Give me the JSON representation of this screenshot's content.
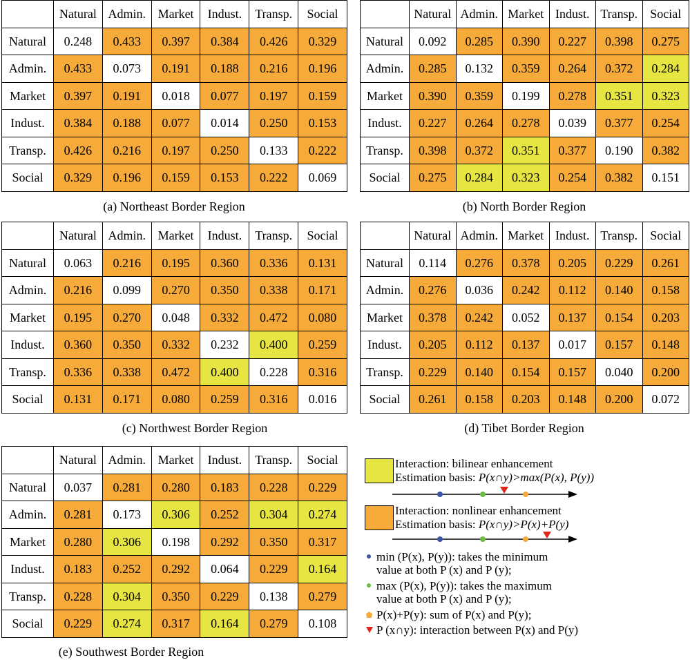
{
  "headers": [
    "Natural",
    "Admin.",
    "Market",
    "Indust.",
    "Transp.",
    "Social"
  ],
  "colors": {
    "white": "#ffffff",
    "orange": "#f5aa3a",
    "yellow": "#e7e541",
    "blue": "#3b56a6",
    "green": "#6dbb45",
    "red": "#e2241c"
  },
  "chart_data": [
    {
      "type": "table",
      "title": "(a) Northeast Border Region",
      "rows": [
        "Natural",
        "Admin.",
        "Market",
        "Indust.",
        "Transp.",
        "Social"
      ],
      "columns": [
        "Natural",
        "Admin.",
        "Market",
        "Indust.",
        "Transp.",
        "Social"
      ],
      "values": [
        [
          "0.248",
          "0.433",
          "0.397",
          "0.384",
          "0.426",
          "0.329"
        ],
        [
          "0.433",
          "0.073",
          "0.191",
          "0.188",
          "0.216",
          "0.196"
        ],
        [
          "0.397",
          "0.191",
          "0.018",
          "0.077",
          "0.197",
          "0.159"
        ],
        [
          "0.384",
          "0.188",
          "0.077",
          "0.014",
          "0.250",
          "0.153"
        ],
        [
          "0.426",
          "0.216",
          "0.197",
          "0.250",
          "0.133",
          "0.222"
        ],
        [
          "0.329",
          "0.196",
          "0.159",
          "0.153",
          "0.222",
          "0.069"
        ]
      ],
      "interaction": [
        [
          "w",
          "o",
          "o",
          "o",
          "o",
          "o"
        ],
        [
          "o",
          "w",
          "o",
          "o",
          "o",
          "o"
        ],
        [
          "o",
          "o",
          "w",
          "o",
          "o",
          "o"
        ],
        [
          "o",
          "o",
          "o",
          "w",
          "o",
          "o"
        ],
        [
          "o",
          "o",
          "o",
          "o",
          "w",
          "o"
        ],
        [
          "o",
          "o",
          "o",
          "o",
          "o",
          "w"
        ]
      ]
    },
    {
      "type": "table",
      "title": "(b) North Border Region",
      "rows": [
        "Natural",
        "Admin.",
        "Market",
        "Indust.",
        "Transp.",
        "Social"
      ],
      "columns": [
        "Natural",
        "Admin.",
        "Market",
        "Indust.",
        "Transp.",
        "Social"
      ],
      "values": [
        [
          "0.092",
          "0.285",
          "0.390",
          "0.227",
          "0.398",
          "0.275"
        ],
        [
          "0.285",
          "0.132",
          "0.359",
          "0.264",
          "0.372",
          "0.284"
        ],
        [
          "0.390",
          "0.359",
          "0.199",
          "0.278",
          "0.351",
          "0.323"
        ],
        [
          "0.227",
          "0.264",
          "0.278",
          "0.039",
          "0.377",
          "0.254"
        ],
        [
          "0.398",
          "0.372",
          "0.351",
          "0.377",
          "0.190",
          "0.382"
        ],
        [
          "0.275",
          "0.284",
          "0.323",
          "0.254",
          "0.382",
          "0.151"
        ]
      ],
      "interaction": [
        [
          "w",
          "o",
          "o",
          "o",
          "o",
          "o"
        ],
        [
          "o",
          "w",
          "o",
          "o",
          "o",
          "y"
        ],
        [
          "o",
          "o",
          "w",
          "o",
          "y",
          "y"
        ],
        [
          "o",
          "o",
          "o",
          "w",
          "o",
          "o"
        ],
        [
          "o",
          "o",
          "y",
          "o",
          "w",
          "o"
        ],
        [
          "o",
          "y",
          "y",
          "o",
          "o",
          "w"
        ]
      ]
    },
    {
      "type": "table",
      "title": "(c) Northwest Border Region",
      "rows": [
        "Natural",
        "Admin.",
        "Market",
        "Indust.",
        "Transp.",
        "Social"
      ],
      "columns": [
        "Natural",
        "Admin.",
        "Market",
        "Indust.",
        "Transp.",
        "Social"
      ],
      "values": [
        [
          "0.063",
          "0.216",
          "0.195",
          "0.360",
          "0.336",
          "0.131"
        ],
        [
          "0.216",
          "0.099",
          "0.270",
          "0.350",
          "0.338",
          "0.171"
        ],
        [
          "0.195",
          "0.270",
          "0.048",
          "0.332",
          "0.472",
          "0.080"
        ],
        [
          "0.360",
          "0.350",
          "0.332",
          "0.232",
          "0.400",
          "0.259"
        ],
        [
          "0.336",
          "0.338",
          "0.472",
          "0.400",
          "0.228",
          "0.316"
        ],
        [
          "0.131",
          "0.171",
          "0.080",
          "0.259",
          "0.316",
          "0.016"
        ]
      ],
      "interaction": [
        [
          "w",
          "o",
          "o",
          "o",
          "o",
          "o"
        ],
        [
          "o",
          "w",
          "o",
          "o",
          "o",
          "o"
        ],
        [
          "o",
          "o",
          "w",
          "o",
          "o",
          "o"
        ],
        [
          "o",
          "o",
          "o",
          "w",
          "y",
          "o"
        ],
        [
          "o",
          "o",
          "o",
          "y",
          "w",
          "o"
        ],
        [
          "o",
          "o",
          "o",
          "o",
          "o",
          "w"
        ]
      ]
    },
    {
      "type": "table",
      "title": "(d) Tibet Border Region",
      "rows": [
        "Natural",
        "Admin.",
        "Market",
        "Indust.",
        "Transp.",
        "Social"
      ],
      "columns": [
        "Natural",
        "Admin.",
        "Market",
        "Indust.",
        "Transp.",
        "Social"
      ],
      "values": [
        [
          "0.114",
          "0.276",
          "0.378",
          "0.205",
          "0.229",
          "0.261"
        ],
        [
          "0.276",
          "0.036",
          "0.242",
          "0.112",
          "0.140",
          "0.158"
        ],
        [
          "0.378",
          "0.242",
          "0.052",
          "0.137",
          "0.154",
          "0.203"
        ],
        [
          "0.205",
          "0.112",
          "0.137",
          "0.017",
          "0.157",
          "0.148"
        ],
        [
          "0.229",
          "0.140",
          "0.154",
          "0.157",
          "0.040",
          "0.200"
        ],
        [
          "0.261",
          "0.158",
          "0.203",
          "0.148",
          "0.200",
          "0.072"
        ]
      ],
      "interaction": [
        [
          "w",
          "o",
          "o",
          "o",
          "o",
          "o"
        ],
        [
          "o",
          "w",
          "o",
          "o",
          "o",
          "o"
        ],
        [
          "o",
          "o",
          "w",
          "o",
          "o",
          "o"
        ],
        [
          "o",
          "o",
          "o",
          "w",
          "o",
          "o"
        ],
        [
          "o",
          "o",
          "o",
          "o",
          "w",
          "o"
        ],
        [
          "o",
          "o",
          "o",
          "o",
          "o",
          "w"
        ]
      ]
    },
    {
      "type": "table",
      "title": "(e) Southwest Border Region",
      "rows": [
        "Natural",
        "Admin.",
        "Market",
        "Indust.",
        "Transp.",
        "Social"
      ],
      "columns": [
        "Natural",
        "Admin.",
        "Market",
        "Indust.",
        "Transp.",
        "Social"
      ],
      "values": [
        [
          "0.037",
          "0.281",
          "0.280",
          "0.183",
          "0.228",
          "0.229"
        ],
        [
          "0.281",
          "0.173",
          "0.306",
          "0.252",
          "0.304",
          "0.274"
        ],
        [
          "0.280",
          "0.306",
          "0.198",
          "0.292",
          "0.350",
          "0.317"
        ],
        [
          "0.183",
          "0.252",
          "0.292",
          "0.064",
          "0.229",
          "0.164"
        ],
        [
          "0.228",
          "0.304",
          "0.350",
          "0.229",
          "0.138",
          "0.279"
        ],
        [
          "0.229",
          "0.274",
          "0.317",
          "0.164",
          "0.279",
          "0.108"
        ]
      ],
      "interaction": [
        [
          "w",
          "o",
          "o",
          "o",
          "o",
          "o"
        ],
        [
          "o",
          "w",
          "y",
          "o",
          "y",
          "y"
        ],
        [
          "o",
          "y",
          "w",
          "o",
          "o",
          "o"
        ],
        [
          "o",
          "o",
          "o",
          "w",
          "o",
          "y"
        ],
        [
          "o",
          "y",
          "o",
          "o",
          "w",
          "o"
        ],
        [
          "o",
          "y",
          "o",
          "y",
          "o",
          "w"
        ]
      ]
    }
  ],
  "legend": {
    "bilinear": {
      "line1": "Interaction: bilinear enhancement",
      "basis_label": "Estimation basis: ",
      "basis_formula": "P(x∩y)>max(P(x), P(y))"
    },
    "nonlinear": {
      "line1": "Interaction: nonlinear enhancement",
      "basis_label": "Estimation basis: ",
      "basis_formula": "P(x∩y)>P(x)+P(y)"
    },
    "items": [
      {
        "marker": "blue-dot",
        "line1": "min (P(x), P(y)): takes the minimum",
        "line2": "value at both P (x) and P (y);"
      },
      {
        "marker": "green-dot",
        "line1": "max (P(x), P(y)): takes the maximum",
        "line2": "value at both P (x) and P (y);"
      },
      {
        "marker": "orange-dot",
        "line1": "P(x)+P(y): sum of P(x) and P(y);"
      },
      {
        "marker": "red-triangle",
        "line1": "P (x∩y): interaction between P(x) and P(y)"
      }
    ]
  }
}
